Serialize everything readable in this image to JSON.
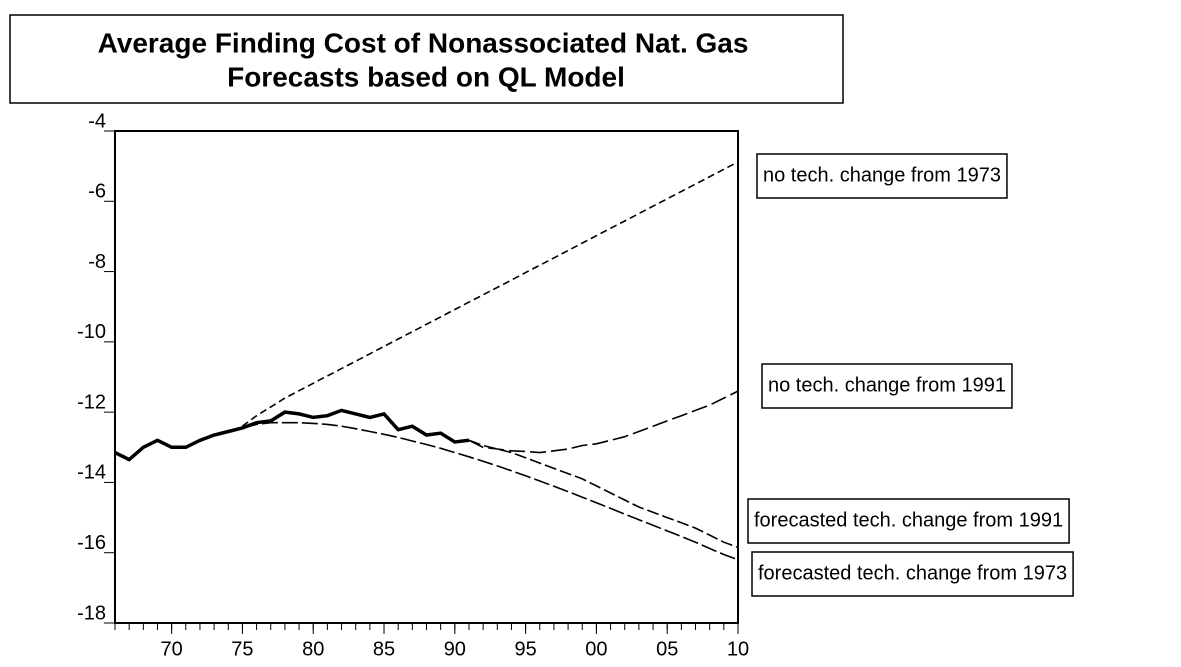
{
  "chart_data": {
    "type": "line",
    "title": "Average Finding Cost of Nonassociated Nat. Gas",
    "subtitle": "Forecasts based on QL Model",
    "x": [
      1966,
      1967,
      1968,
      1969,
      1970,
      1971,
      1972,
      1973,
      1974,
      1975,
      1976,
      1977,
      1978,
      1979,
      1980,
      1981,
      1982,
      1983,
      1984,
      1985,
      1986,
      1987,
      1988,
      1989,
      1990,
      1991,
      1992,
      1993,
      1994,
      1995,
      1996,
      1997,
      1998,
      1999,
      2000,
      2001,
      2002,
      2003,
      2004,
      2005,
      2006,
      2007,
      2008,
      2009,
      2010
    ],
    "xlim": [
      1966,
      2010
    ],
    "xticks": [
      {
        "value": 1970,
        "label": "70"
      },
      {
        "value": 1975,
        "label": "75"
      },
      {
        "value": 1980,
        "label": "80"
      },
      {
        "value": 1985,
        "label": "85"
      },
      {
        "value": 1990,
        "label": "90"
      },
      {
        "value": 1995,
        "label": "95"
      },
      {
        "value": 2000,
        "label": "00"
      },
      {
        "value": 2005,
        "label": "05"
      },
      {
        "value": 2010,
        "label": "10"
      }
    ],
    "ylim": [
      -18,
      -4
    ],
    "yticks": [
      -4,
      -6,
      -8,
      -10,
      -12,
      -14,
      -16,
      -18
    ],
    "series": [
      {
        "color": "#000000",
        "values": [
          -13.15,
          -13.35,
          -13.0,
          -12.8,
          -13.0,
          -13.0,
          -12.8,
          -12.65,
          -12.55,
          -12.45,
          -12.3,
          -12.25,
          -12.0,
          -12.05,
          -12.15,
          -12.1,
          -11.95,
          -12.05,
          -12.15,
          -12.05,
          -12.5,
          -12.4,
          -12.65,
          -12.6,
          -12.85,
          -12.8,
          null,
          null,
          null,
          null,
          null,
          null,
          null,
          null,
          null,
          null,
          null,
          null,
          null,
          null,
          null,
          null,
          null,
          null,
          null
        ]
      },
      {
        "name": "no tech. change from 1973",
        "color": "#000000",
        "values": [
          null,
          null,
          null,
          null,
          null,
          null,
          null,
          null,
          null,
          -12.4,
          -12.1,
          -11.85,
          -11.6,
          -11.39,
          -11.18,
          -10.97,
          -10.76,
          -10.55,
          -10.34,
          -10.13,
          -9.92,
          -9.71,
          -9.5,
          -9.29,
          -9.08,
          -8.87,
          -8.66,
          -8.45,
          -8.24,
          -8.03,
          -7.82,
          -7.61,
          -7.4,
          -7.19,
          -6.98,
          -6.77,
          -6.56,
          -6.35,
          -6.14,
          -5.93,
          -5.72,
          -5.51,
          -5.3,
          -5.09,
          -4.88
        ]
      },
      {
        "name": "no tech. change from 1991",
        "color": "#000000",
        "values": [
          null,
          null,
          null,
          null,
          null,
          null,
          null,
          null,
          null,
          null,
          null,
          null,
          null,
          null,
          null,
          null,
          null,
          null,
          null,
          null,
          null,
          null,
          null,
          null,
          null,
          -12.8,
          -13.0,
          -13.05,
          -13.1,
          -13.12,
          -13.15,
          -13.1,
          -13.05,
          -12.95,
          -12.9,
          -12.8,
          -12.7,
          -12.55,
          -12.4,
          -12.25,
          -12.1,
          -11.95,
          -11.8,
          -11.6,
          -11.4
        ]
      },
      {
        "name": "forecasted tech. change from 1991",
        "color": "#000000",
        "values": [
          null,
          null,
          null,
          null,
          null,
          null,
          null,
          null,
          null,
          null,
          null,
          null,
          null,
          null,
          null,
          null,
          null,
          null,
          null,
          null,
          null,
          null,
          null,
          null,
          null,
          -12.8,
          -12.95,
          -13.05,
          -13.15,
          -13.3,
          -13.45,
          -13.6,
          -13.75,
          -13.9,
          -14.1,
          -14.3,
          -14.5,
          -14.7,
          -14.85,
          -15.0,
          -15.15,
          -15.3,
          -15.5,
          -15.7,
          -15.85
        ]
      },
      {
        "name": "forecasted tech. change from 1973",
        "color": "#000000",
        "values": [
          null,
          null,
          null,
          null,
          null,
          null,
          null,
          null,
          null,
          -12.45,
          -12.35,
          -12.3,
          -12.3,
          -12.3,
          -12.32,
          -12.35,
          -12.4,
          -12.47,
          -12.55,
          -12.63,
          -12.72,
          -12.82,
          -12.92,
          -13.03,
          -13.15,
          -13.27,
          -13.4,
          -13.53,
          -13.67,
          -13.81,
          -13.96,
          -14.11,
          -14.26,
          -14.42,
          -14.58,
          -14.74,
          -14.9,
          -15.06,
          -15.22,
          -15.38,
          -15.54,
          -15.7,
          -15.88,
          -16.05,
          -16.2
        ]
      }
    ]
  }
}
